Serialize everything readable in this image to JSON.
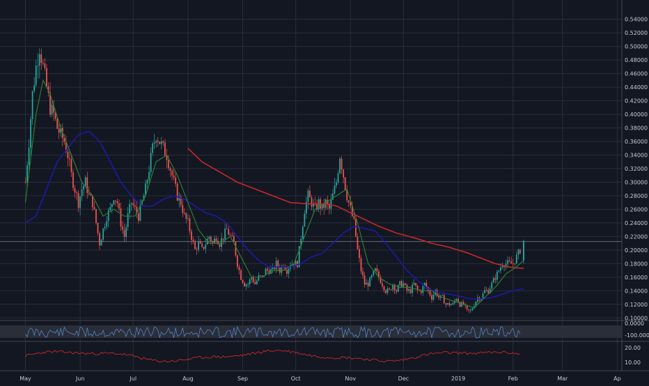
{
  "chart_data": {
    "type": "candlestick",
    "background": "#131722",
    "colors": {
      "up": "#26a69a",
      "down": "#ef5350",
      "sma_fast": "#2e7d32",
      "sma_slow": "#1a1aa6",
      "sma_long": "#c62828",
      "rsi_line": "#5b8fd6",
      "adx_line": "#c62828",
      "grid": "#2a2e39",
      "axis_text": "#c8cbd3",
      "last_price_line": "#6e7681"
    },
    "y_ticks": [
      "0.54000",
      "0.52000",
      "0.50000",
      "0.48000",
      "0.46000",
      "0.44000",
      "0.42000",
      "0.40000",
      "0.38000",
      "0.36000",
      "0.34000",
      "0.32000",
      "0.30000",
      "0.28000",
      "0.26000",
      "0.24000",
      "0.22000",
      "0.20000",
      "0.18000",
      "0.16000",
      "0.14000",
      "0.12000",
      "0.10000"
    ],
    "ylim": [
      0.09,
      0.55
    ],
    "x_labels": [
      {
        "label": "May",
        "day": 0
      },
      {
        "label": "Jun",
        "day": 31
      },
      {
        "label": "Jul",
        "day": 61
      },
      {
        "label": "Aug",
        "day": 92
      },
      {
        "label": "Sep",
        "day": 123
      },
      {
        "label": "Oct",
        "day": 153
      },
      {
        "label": "Nov",
        "day": 184
      },
      {
        "label": "Dec",
        "day": 214
      },
      {
        "label": "2019",
        "day": 245
      },
      {
        "label": "Feb",
        "day": 276
      },
      {
        "label": "Mar",
        "day": 304
      },
      {
        "label": "Ap",
        "day": 335
      }
    ],
    "close_anchors": [
      [
        0,
        0.3
      ],
      [
        2,
        0.36
      ],
      [
        4,
        0.43
      ],
      [
        6,
        0.47
      ],
      [
        8,
        0.5
      ],
      [
        10,
        0.47
      ],
      [
        12,
        0.44
      ],
      [
        14,
        0.41
      ],
      [
        16,
        0.4
      ],
      [
        18,
        0.38
      ],
      [
        20,
        0.37
      ],
      [
        22,
        0.36
      ],
      [
        24,
        0.34
      ],
      [
        26,
        0.31
      ],
      [
        28,
        0.29
      ],
      [
        30,
        0.27
      ],
      [
        32,
        0.29
      ],
      [
        34,
        0.3
      ],
      [
        36,
        0.28
      ],
      [
        38,
        0.27
      ],
      [
        40,
        0.24
      ],
      [
        42,
        0.21
      ],
      [
        44,
        0.23
      ],
      [
        46,
        0.25
      ],
      [
        48,
        0.26
      ],
      [
        50,
        0.28
      ],
      [
        52,
        0.27
      ],
      [
        54,
        0.24
      ],
      [
        56,
        0.22
      ],
      [
        58,
        0.25
      ],
      [
        60,
        0.27
      ],
      [
        62,
        0.26
      ],
      [
        64,
        0.25
      ],
      [
        66,
        0.27
      ],
      [
        68,
        0.29
      ],
      [
        70,
        0.32
      ],
      [
        72,
        0.35
      ],
      [
        74,
        0.37
      ],
      [
        76,
        0.36
      ],
      [
        78,
        0.35
      ],
      [
        80,
        0.34
      ],
      [
        82,
        0.32
      ],
      [
        84,
        0.3
      ],
      [
        86,
        0.28
      ],
      [
        88,
        0.27
      ],
      [
        90,
        0.25
      ],
      [
        92,
        0.24
      ],
      [
        94,
        0.22
      ],
      [
        96,
        0.2
      ],
      [
        98,
        0.21
      ],
      [
        100,
        0.2
      ],
      [
        102,
        0.21
      ],
      [
        104,
        0.22
      ],
      [
        106,
        0.21
      ],
      [
        108,
        0.22
      ],
      [
        110,
        0.21
      ],
      [
        112,
        0.22
      ],
      [
        114,
        0.23
      ],
      [
        116,
        0.22
      ],
      [
        118,
        0.21
      ],
      [
        120,
        0.18
      ],
      [
        122,
        0.16
      ],
      [
        124,
        0.15
      ],
      [
        126,
        0.15
      ],
      [
        128,
        0.16
      ],
      [
        130,
        0.15
      ],
      [
        132,
        0.16
      ],
      [
        134,
        0.16
      ],
      [
        136,
        0.17
      ],
      [
        138,
        0.17
      ],
      [
        140,
        0.17
      ],
      [
        142,
        0.18
      ],
      [
        144,
        0.17
      ],
      [
        146,
        0.18
      ],
      [
        148,
        0.17
      ],
      [
        150,
        0.18
      ],
      [
        152,
        0.18
      ],
      [
        154,
        0.18
      ],
      [
        156,
        0.22
      ],
      [
        158,
        0.26
      ],
      [
        160,
        0.28
      ],
      [
        162,
        0.27
      ],
      [
        164,
        0.26
      ],
      [
        166,
        0.27
      ],
      [
        168,
        0.26
      ],
      [
        170,
        0.27
      ],
      [
        172,
        0.26
      ],
      [
        174,
        0.28
      ],
      [
        176,
        0.3
      ],
      [
        178,
        0.34
      ],
      [
        180,
        0.31
      ],
      [
        182,
        0.28
      ],
      [
        184,
        0.26
      ],
      [
        186,
        0.24
      ],
      [
        188,
        0.2
      ],
      [
        190,
        0.17
      ],
      [
        192,
        0.15
      ],
      [
        194,
        0.15
      ],
      [
        196,
        0.16
      ],
      [
        198,
        0.17
      ],
      [
        200,
        0.16
      ],
      [
        202,
        0.15
      ],
      [
        204,
        0.14
      ],
      [
        206,
        0.14
      ],
      [
        208,
        0.15
      ],
      [
        210,
        0.14
      ],
      [
        212,
        0.15
      ],
      [
        214,
        0.15
      ],
      [
        216,
        0.14
      ],
      [
        218,
        0.14
      ],
      [
        220,
        0.15
      ],
      [
        222,
        0.14
      ],
      [
        224,
        0.14
      ],
      [
        226,
        0.15
      ],
      [
        228,
        0.14
      ],
      [
        230,
        0.13
      ],
      [
        232,
        0.14
      ],
      [
        234,
        0.13
      ],
      [
        236,
        0.13
      ],
      [
        238,
        0.12
      ],
      [
        240,
        0.12
      ],
      [
        242,
        0.12
      ],
      [
        244,
        0.13
      ],
      [
        246,
        0.12
      ],
      [
        248,
        0.12
      ],
      [
        250,
        0.11
      ],
      [
        252,
        0.11
      ],
      [
        254,
        0.12
      ],
      [
        256,
        0.13
      ],
      [
        258,
        0.13
      ],
      [
        260,
        0.14
      ],
      [
        262,
        0.14
      ],
      [
        264,
        0.15
      ],
      [
        266,
        0.16
      ],
      [
        268,
        0.17
      ],
      [
        270,
        0.18
      ],
      [
        272,
        0.18
      ],
      [
        274,
        0.18
      ],
      [
        276,
        0.18
      ],
      [
        278,
        0.19
      ],
      [
        280,
        0.2
      ]
    ],
    "sma_fast": [
      [
        0,
        0.27
      ],
      [
        6,
        0.4
      ],
      [
        10,
        0.45
      ],
      [
        14,
        0.43
      ],
      [
        20,
        0.38
      ],
      [
        26,
        0.34
      ],
      [
        32,
        0.3
      ],
      [
        38,
        0.28
      ],
      [
        44,
        0.25
      ],
      [
        50,
        0.26
      ],
      [
        56,
        0.25
      ],
      [
        62,
        0.25
      ],
      [
        68,
        0.28
      ],
      [
        74,
        0.33
      ],
      [
        80,
        0.34
      ],
      [
        86,
        0.31
      ],
      [
        92,
        0.27
      ],
      [
        98,
        0.23
      ],
      [
        104,
        0.21
      ],
      [
        110,
        0.21
      ],
      [
        116,
        0.22
      ],
      [
        122,
        0.19
      ],
      [
        128,
        0.16
      ],
      [
        134,
        0.16
      ],
      [
        140,
        0.17
      ],
      [
        146,
        0.17
      ],
      [
        152,
        0.18
      ],
      [
        158,
        0.22
      ],
      [
        164,
        0.26
      ],
      [
        170,
        0.27
      ],
      [
        176,
        0.28
      ],
      [
        182,
        0.29
      ],
      [
        188,
        0.24
      ],
      [
        194,
        0.18
      ],
      [
        200,
        0.16
      ],
      [
        206,
        0.15
      ],
      [
        212,
        0.145
      ],
      [
        218,
        0.145
      ],
      [
        224,
        0.14
      ],
      [
        230,
        0.14
      ],
      [
        236,
        0.13
      ],
      [
        242,
        0.125
      ],
      [
        248,
        0.12
      ],
      [
        254,
        0.115
      ],
      [
        260,
        0.13
      ],
      [
        266,
        0.145
      ],
      [
        272,
        0.165
      ],
      [
        278,
        0.175
      ],
      [
        282,
        0.185
      ]
    ],
    "sma_slow": [
      [
        0,
        0.24
      ],
      [
        6,
        0.25
      ],
      [
        12,
        0.29
      ],
      [
        18,
        0.33
      ],
      [
        24,
        0.35
      ],
      [
        30,
        0.37
      ],
      [
        36,
        0.375
      ],
      [
        42,
        0.36
      ],
      [
        48,
        0.33
      ],
      [
        54,
        0.3
      ],
      [
        60,
        0.28
      ],
      [
        66,
        0.265
      ],
      [
        72,
        0.265
      ],
      [
        78,
        0.275
      ],
      [
        84,
        0.28
      ],
      [
        90,
        0.275
      ],
      [
        96,
        0.265
      ],
      [
        102,
        0.255
      ],
      [
        108,
        0.25
      ],
      [
        114,
        0.24
      ],
      [
        120,
        0.22
      ],
      [
        126,
        0.2
      ],
      [
        132,
        0.185
      ],
      [
        138,
        0.175
      ],
      [
        144,
        0.175
      ],
      [
        150,
        0.175
      ],
      [
        156,
        0.18
      ],
      [
        162,
        0.19
      ],
      [
        168,
        0.195
      ],
      [
        174,
        0.21
      ],
      [
        180,
        0.225
      ],
      [
        186,
        0.235
      ],
      [
        192,
        0.232
      ],
      [
        198,
        0.228
      ],
      [
        204,
        0.21
      ],
      [
        210,
        0.19
      ],
      [
        216,
        0.17
      ],
      [
        222,
        0.155
      ],
      [
        228,
        0.143
      ],
      [
        234,
        0.137
      ],
      [
        240,
        0.135
      ],
      [
        246,
        0.132
      ],
      [
        252,
        0.128
      ],
      [
        258,
        0.128
      ],
      [
        264,
        0.13
      ],
      [
        270,
        0.135
      ],
      [
        276,
        0.14
      ],
      [
        282,
        0.143
      ]
    ],
    "sma_long": [
      [
        92,
        0.35
      ],
      [
        100,
        0.33
      ],
      [
        110,
        0.315
      ],
      [
        120,
        0.3
      ],
      [
        130,
        0.29
      ],
      [
        140,
        0.28
      ],
      [
        150,
        0.27
      ],
      [
        160,
        0.268
      ],
      [
        170,
        0.268
      ],
      [
        176,
        0.265
      ],
      [
        184,
        0.255
      ],
      [
        192,
        0.245
      ],
      [
        200,
        0.235
      ],
      [
        210,
        0.225
      ],
      [
        220,
        0.218
      ],
      [
        230,
        0.21
      ],
      [
        240,
        0.204
      ],
      [
        250,
        0.196
      ],
      [
        258,
        0.188
      ],
      [
        266,
        0.18
      ],
      [
        272,
        0.176
      ],
      [
        276,
        0.174
      ],
      [
        282,
        0.173
      ]
    ],
    "last_price": 0.2125,
    "rsi_panel": {
      "label": "0.0000",
      "low_label": "-100.0000"
    },
    "adx_panel": {
      "labels": [
        "20.00",
        "10.00"
      ]
    }
  }
}
